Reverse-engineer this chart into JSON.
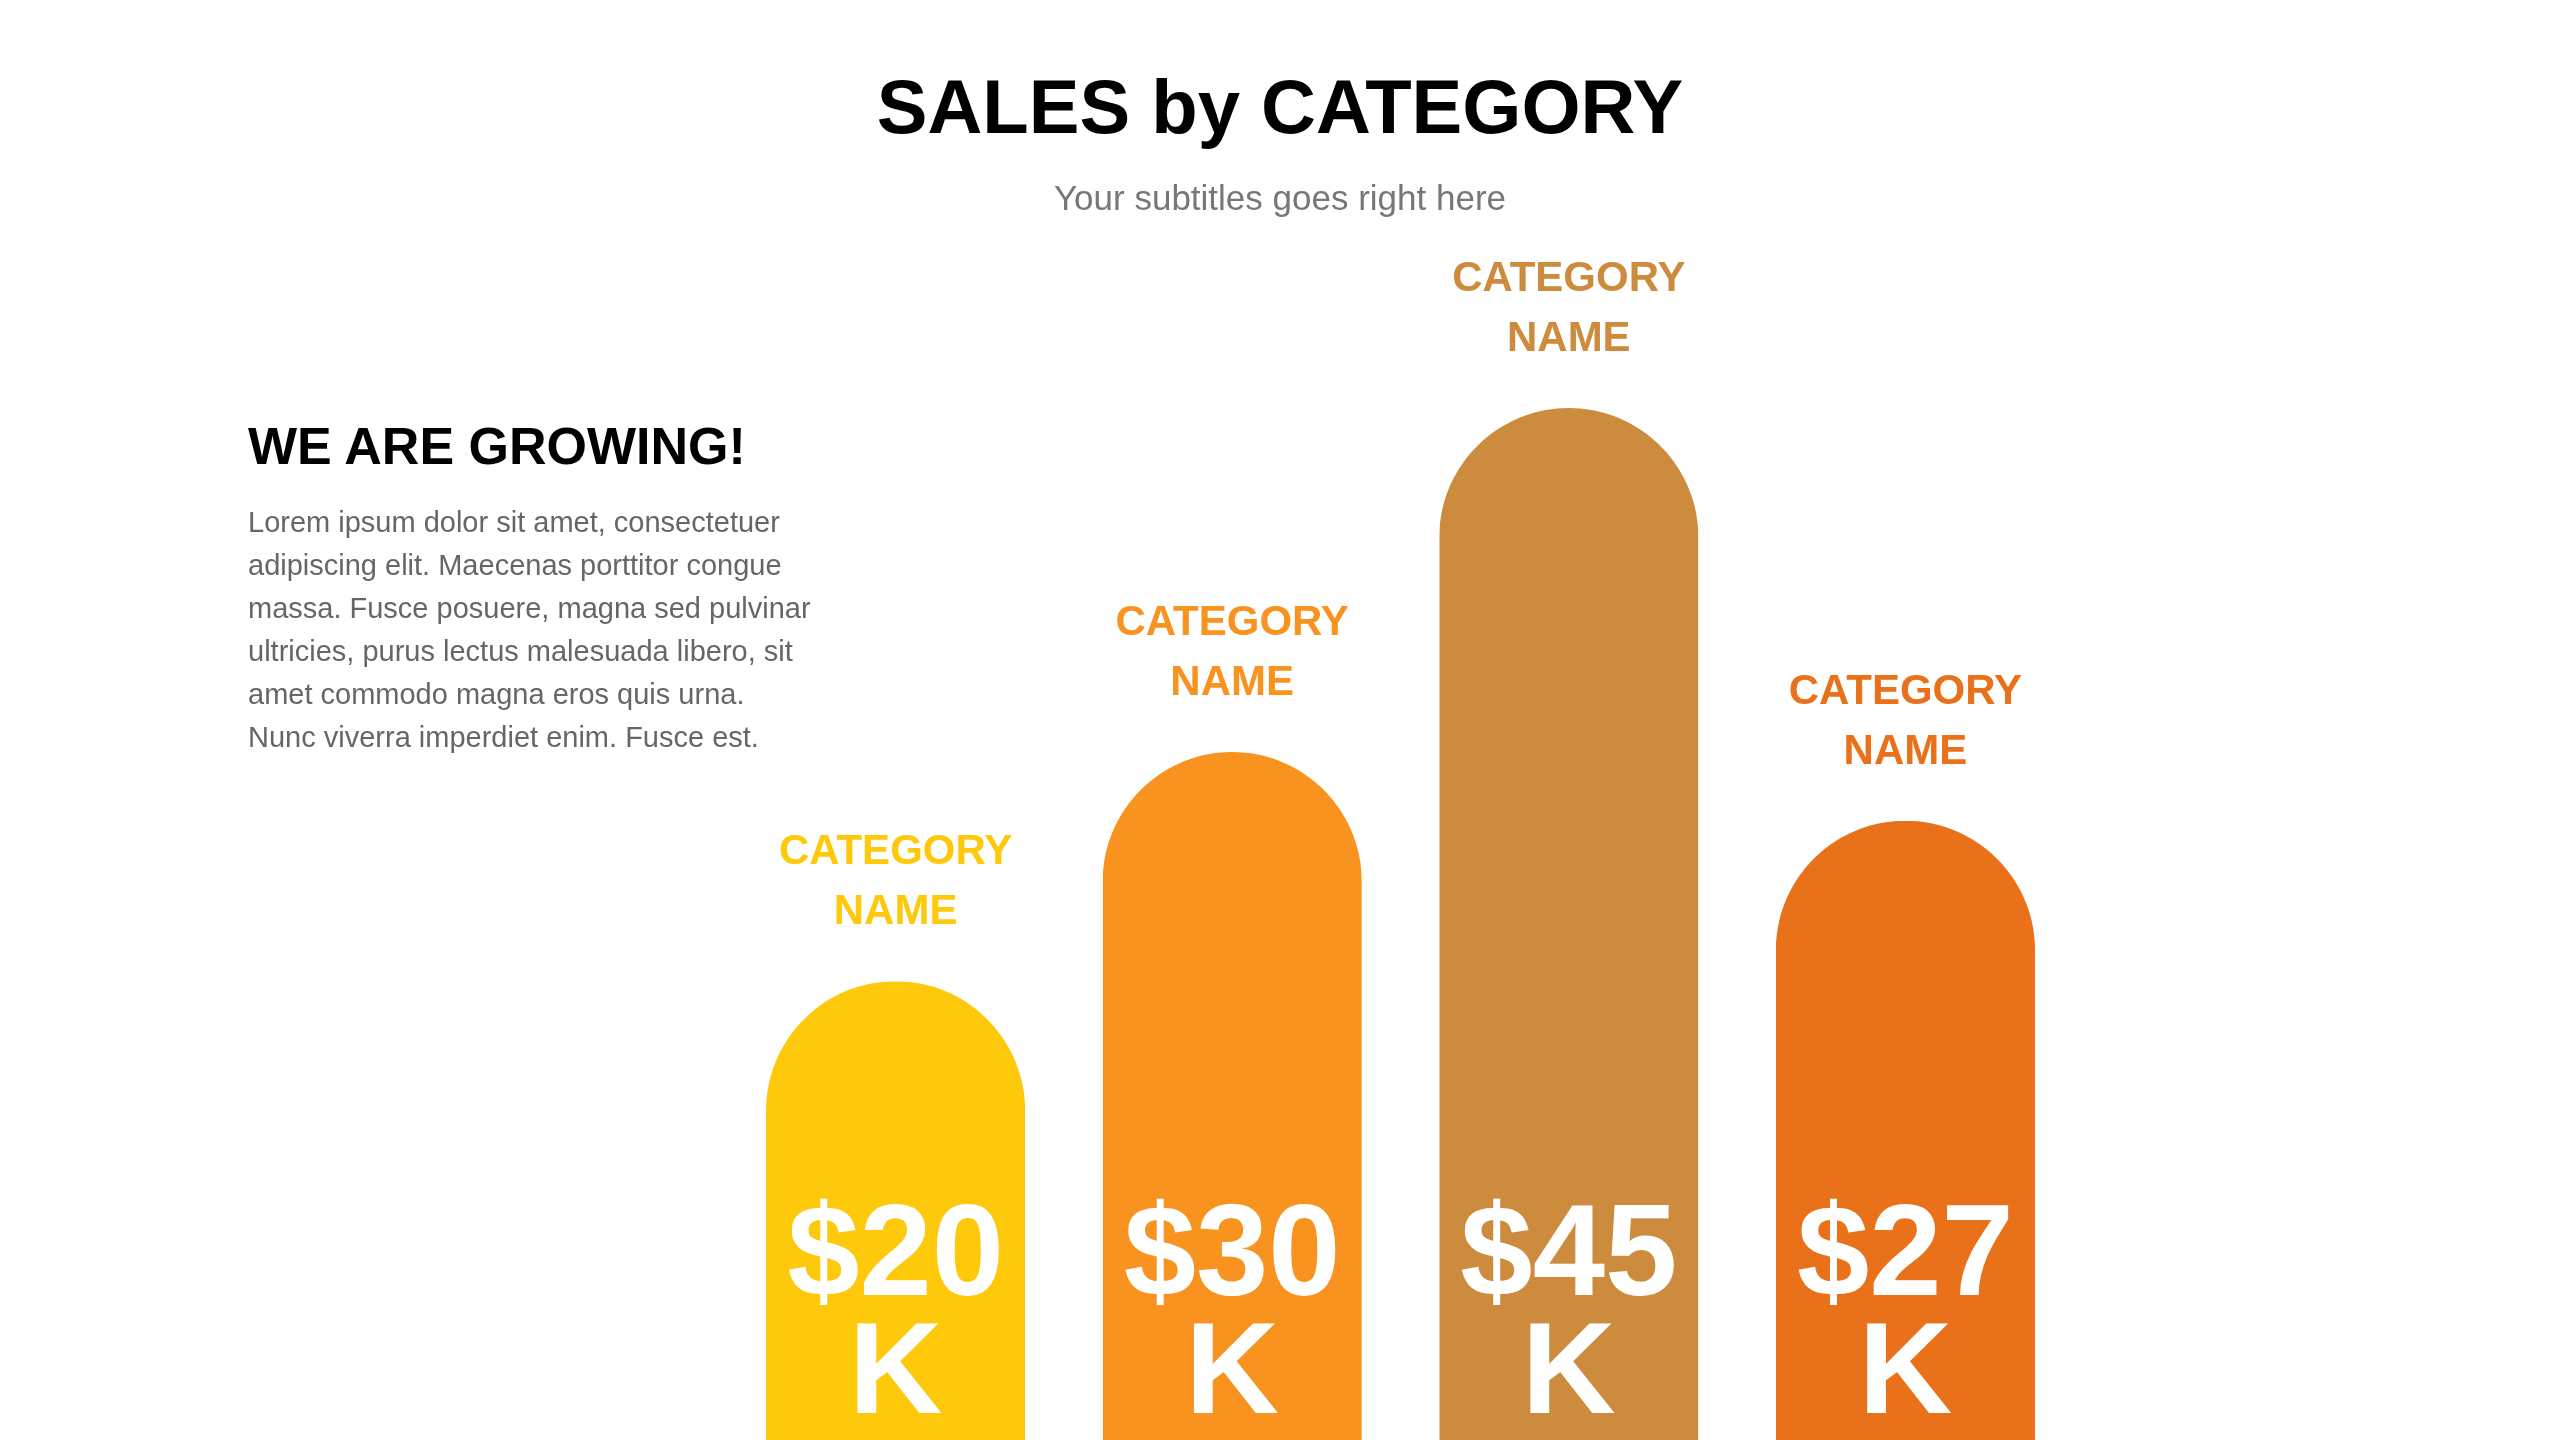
{
  "chart_data": {
    "type": "bar",
    "title": "SALES by CATEGORY",
    "subtitle": "Your subtitles goes right here",
    "annotations": [
      "WE ARE GROWING!",
      "Lorem ipsum dolor sit amet, consectetuer\nadipiscing elit. Maecenas porttitor congue\nmassa. Fusce posuere, magna sed pulvinar\nultricies, purus lectus malesuada libero, sit\namet commodo magna eros quis urna.\nNunc viverra imperdiet enim. Fusce est."
    ],
    "categories": [
      "CATEGORY NAME",
      "CATEGORY NAME",
      "CATEGORY NAME",
      "CATEGORY NAME"
    ],
    "values": [
      20,
      30,
      45,
      27
    ],
    "colors": [
      "#fdc90a",
      "#f7931e",
      "#cd8b3e",
      "#e9711a"
    ],
    "value_labels": [
      "$20 K",
      "$30 K",
      "$45 K",
      "$27 K"
    ]
  }
}
